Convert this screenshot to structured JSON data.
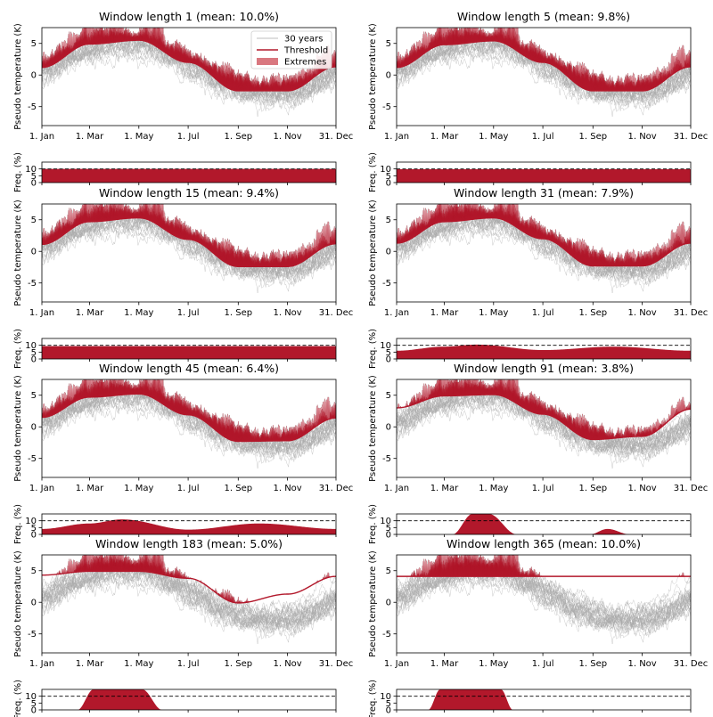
{
  "chart_data": {
    "type": "line",
    "x_ticks": [
      "1. Jan",
      "1. Mar",
      "1. May",
      "1. Jul",
      "1. Sep",
      "1. Nov",
      "31. Dec"
    ],
    "x_tick_days": [
      1,
      60,
      121,
      182,
      244,
      305,
      365
    ],
    "ylabel_main": "Pseudo temperature (K)",
    "ylabel_freq": "Freq. (%)",
    "main_ylim": [
      -8,
      7.5
    ],
    "main_yticks": [
      -5,
      0,
      5
    ],
    "freq_ylim": [
      0,
      15
    ],
    "freq_yticks": [
      0,
      5,
      10
    ],
    "freq_reference": 10,
    "legend": {
      "placement": "top-right of first panel",
      "entries": [
        "30 years",
        "Threshold",
        "Extremes"
      ]
    },
    "colors": {
      "years": "#a9a9a9",
      "threshold": "#b2182b",
      "extremes": "#b2182b",
      "extremes_legend": "#d9777f",
      "frequency": "#b2182b",
      "reference_line": "#000000"
    },
    "series_count": 30,
    "climatology": {
      "mean": 1.0,
      "amplitude": 4.0,
      "peak_day": 100
    },
    "panels": [
      {
        "title": "Window length 1 (mean: 10.0%)",
        "window": 1,
        "mean_freq": 10.0,
        "threshold": {
          "x": [
            1,
            60,
            121,
            182,
            244,
            305,
            365
          ],
          "y": [
            1.2,
            4.9,
            5.5,
            2.0,
            -2.5,
            -2.5,
            1.3
          ]
        },
        "freq": {
          "x": [
            1,
            365
          ],
          "y": [
            10,
            10
          ]
        }
      },
      {
        "title": "Window length 5 (mean: 9.8%)",
        "window": 5,
        "mean_freq": 9.8,
        "threshold": {
          "x": [
            1,
            60,
            121,
            182,
            244,
            305,
            365
          ],
          "y": [
            1.2,
            4.8,
            5.4,
            2.0,
            -2.5,
            -2.5,
            1.3
          ]
        },
        "freq": {
          "x": [
            1,
            365
          ],
          "y": [
            9.8,
            9.8
          ]
        }
      },
      {
        "title": "Window length 15 (mean: 9.4%)",
        "window": 15,
        "mean_freq": 9.4,
        "threshold": {
          "x": [
            1,
            60,
            121,
            182,
            244,
            305,
            365
          ],
          "y": [
            1.1,
            4.7,
            5.3,
            1.9,
            -2.4,
            -2.4,
            1.2
          ]
        },
        "freq": {
          "x": [
            1,
            365
          ],
          "y": [
            9.4,
            9.4
          ]
        }
      },
      {
        "title": "Window length 31 (mean: 7.9%)",
        "window": 31,
        "mean_freq": 7.9,
        "threshold": {
          "x": [
            1,
            60,
            121,
            182,
            244,
            305,
            365
          ],
          "y": [
            1.3,
            4.7,
            5.3,
            2.0,
            -2.3,
            -2.3,
            1.3
          ]
        },
        "freq": {
          "x": [
            1,
            60,
            100,
            182,
            270,
            365
          ],
          "y": [
            6,
            9,
            10.5,
            6.5,
            9,
            6
          ]
        }
      },
      {
        "title": "Window length 45 (mean: 6.4%)",
        "window": 45,
        "mean_freq": 6.4,
        "threshold": {
          "x": [
            1,
            60,
            121,
            182,
            244,
            305,
            365
          ],
          "y": [
            1.5,
            4.7,
            5.2,
            1.9,
            -2.3,
            -2.2,
            1.4
          ]
        },
        "freq": {
          "x": [
            1,
            60,
            100,
            182,
            270,
            365
          ],
          "y": [
            4,
            8,
            11,
            3.5,
            8,
            4
          ]
        }
      },
      {
        "title": "Window length 91 (mean: 3.8%)",
        "window": 91,
        "mean_freq": 3.8,
        "threshold": {
          "x": [
            1,
            60,
            121,
            182,
            244,
            305,
            365
          ],
          "y": [
            3.0,
            4.9,
            5.1,
            2.0,
            -2.0,
            -1.5,
            2.8
          ]
        },
        "freq": {
          "x": [
            1,
            70,
            95,
            115,
            150,
            240,
            262,
            290,
            365
          ],
          "y": [
            0,
            0,
            15,
            15,
            0,
            0,
            4,
            0,
            0
          ]
        }
      },
      {
        "title": "Window length 183 (mean: 5.0%)",
        "window": 183,
        "mean_freq": 5.0,
        "threshold": {
          "x": [
            1,
            60,
            121,
            182,
            244,
            305,
            365
          ],
          "y": [
            4.3,
            4.9,
            4.9,
            3.8,
            -0.1,
            1.3,
            4.1
          ]
        },
        "freq": {
          "x": [
            1,
            45,
            65,
            125,
            150,
            365
          ],
          "y": [
            0,
            0,
            15,
            15,
            0,
            0
          ]
        }
      },
      {
        "title": "Window length 365 (mean: 10.0%)",
        "window": 365,
        "mean_freq": 10.0,
        "threshold": {
          "x": [
            1,
            365
          ],
          "y": [
            4.1,
            4.1
          ]
        },
        "freq": {
          "x": [
            1,
            40,
            55,
            130,
            145,
            365
          ],
          "y": [
            0,
            0,
            15,
            15,
            0,
            0
          ]
        }
      }
    ]
  }
}
